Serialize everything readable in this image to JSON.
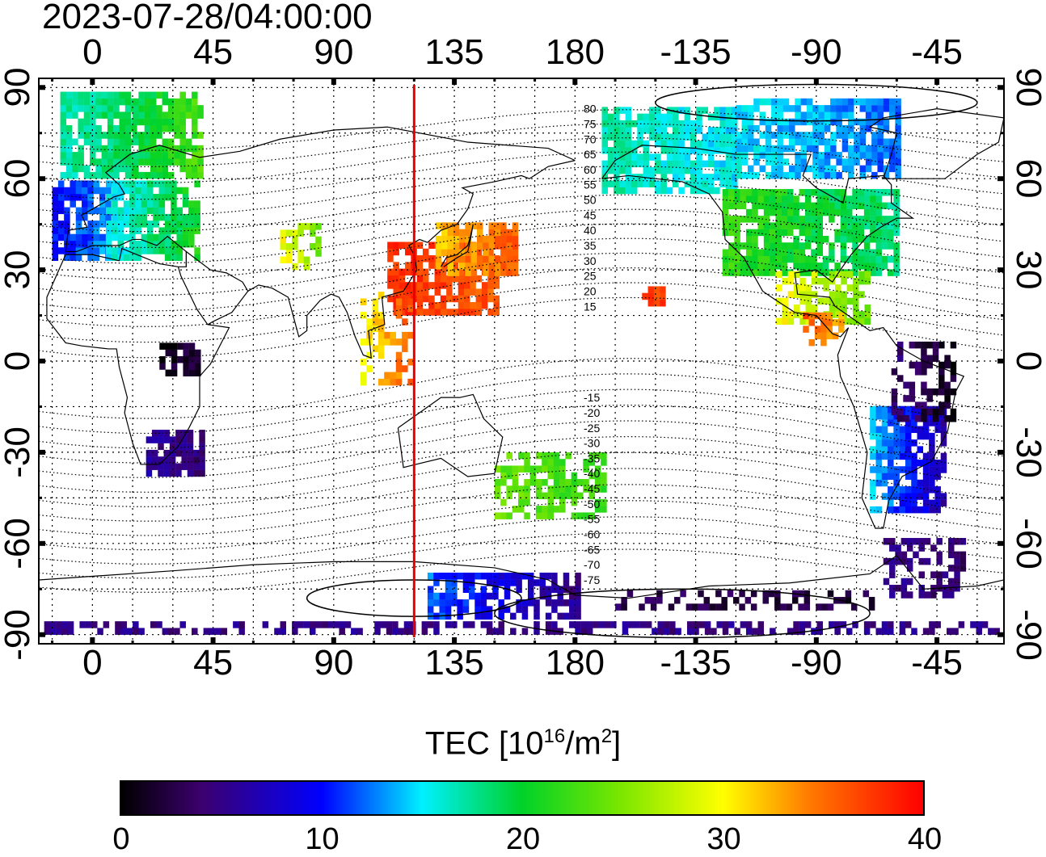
{
  "timestamp": "2023-07-28/04:00:00",
  "map": {
    "lon_labels_top": [
      "0",
      "45",
      "90",
      "135",
      "180",
      "-135",
      "-90",
      "-45"
    ],
    "lon_labels_bottom": [
      "0",
      "45",
      "90",
      "135",
      "180",
      "-135",
      "-90",
      "-45"
    ],
    "lat_labels": [
      "90",
      "60",
      "30",
      "0",
      "-30",
      "-60",
      "-90"
    ],
    "lon_values": [
      0,
      45,
      90,
      135,
      180,
      225,
      270,
      315
    ],
    "lat_values": [
      90,
      60,
      30,
      0,
      -30,
      -60,
      -90
    ],
    "lon_range": [
      -20,
      340
    ],
    "lat_range": [
      -93,
      93
    ],
    "marker_longitude": 120,
    "marker_color": "#e60000",
    "magnetic_contour_labels_north": [
      "80",
      "75",
      "70",
      "65",
      "60",
      "55",
      "50",
      "45",
      "40",
      "35",
      "30",
      "25",
      "20",
      "15"
    ],
    "magnetic_contour_labels_south": [
      "-15",
      "-20",
      "-25",
      "-30",
      "-35",
      "-40",
      "-45",
      "-50",
      "-55",
      "-60",
      "-65",
      "-70",
      "-75"
    ]
  },
  "colorbar": {
    "title_prefix": "TEC  [10",
    "title_exp": "16",
    "title_mid": "/m",
    "title_exp2": "2",
    "title_suffix": "]",
    "min": 0,
    "max": 40,
    "tick_labels": [
      "0",
      "10",
      "20",
      "30",
      "40"
    ],
    "tick_values": [
      0,
      10,
      20,
      30,
      40
    ]
  }
}
